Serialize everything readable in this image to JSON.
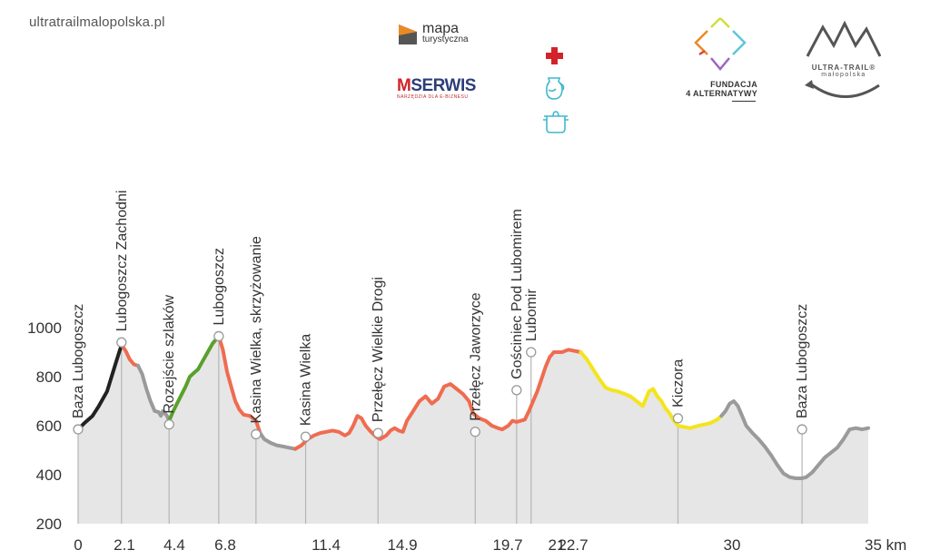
{
  "site": {
    "url": "ultratrailmalopolska.pl"
  },
  "logos": {
    "mapa": {
      "line1": "mapa",
      "line2": "turystyczna",
      "colors": {
        "orange": "#e98a24",
        "dark": "#555555"
      }
    },
    "mserwis": {
      "m": "M",
      "rest": "SERWIS",
      "tagline": "NARZĘDZIA DLA E-BIZNESU"
    },
    "fundacja": {
      "line1": "FUNDACJA",
      "line2": "4 ALTERNATYWY"
    },
    "ultratrail": {
      "line1": "ULTRA-TRAIL®",
      "line2": "małopolska"
    }
  },
  "service_icons": [
    "first-aid-cross-icon",
    "water-jug-icon",
    "cooking-pot-icon"
  ],
  "chart_data": {
    "type": "area",
    "title": "",
    "xlabel": "",
    "ylabel": "",
    "x_unit": "km",
    "xlim": [
      0,
      35
    ],
    "ylim": [
      200,
      1000
    ],
    "yticks": [
      200,
      400,
      600,
      800,
      1000
    ],
    "x_ticks": [
      0,
      2.1,
      4.4,
      6.8,
      11.4,
      14.9,
      19.7,
      21,
      22.7,
      30,
      35
    ],
    "x_tick_labels": [
      "0",
      "2.1",
      "4.4",
      "6.8",
      "11.4",
      "14.9",
      "19.7",
      "21",
      "22.7",
      "30",
      "35 km"
    ],
    "grid": false,
    "fill_color": "#e6e6e6",
    "waypoints": [
      {
        "km": 0,
        "elev": 585,
        "name": "Baza Lubogoszcz"
      },
      {
        "km": 2.1,
        "elev": 940,
        "name": "Lubogoszcz Zachodni"
      },
      {
        "km": 4.4,
        "elev": 605,
        "name": "Rozejście szlaków"
      },
      {
        "km": 6.8,
        "elev": 965,
        "name": "Lubogoszcz"
      },
      {
        "km": 8.6,
        "elev": 565,
        "name": "Kasina Wielka, skrzyżowanie"
      },
      {
        "km": 11.0,
        "elev": 555,
        "name": "Kasina Wielka"
      },
      {
        "km": 14.5,
        "elev": 570,
        "name": "Przełęcz Wielkie Drogi"
      },
      {
        "km": 19.2,
        "elev": 575,
        "name": "Przełęcz Jaworzyce"
      },
      {
        "km": 21.2,
        "elev": 745,
        "name": "Gościniec Pod Lubomirem"
      },
      {
        "km": 21.9,
        "elev": 900,
        "name": "Lubomir"
      },
      {
        "km": 29.0,
        "elev": 630,
        "name": "Kiczora"
      },
      {
        "km": 35,
        "elev": 585,
        "name": "Baza Lubogoszcz"
      }
    ],
    "segments": [
      {
        "color": "#222222",
        "points": [
          [
            0,
            585
          ],
          [
            0.3,
            610
          ],
          [
            0.7,
            640
          ],
          [
            1.0,
            680
          ],
          [
            1.4,
            740
          ],
          [
            1.8,
            850
          ],
          [
            2.1,
            930
          ]
        ]
      },
      {
        "color": "#ef6c50",
        "points": [
          [
            2.1,
            930
          ],
          [
            2.3,
            905
          ],
          [
            2.5,
            870
          ],
          [
            2.7,
            850
          ],
          [
            2.9,
            845
          ]
        ]
      },
      {
        "color": "#9a9a9a",
        "points": [
          [
            2.9,
            845
          ],
          [
            3.1,
            810
          ],
          [
            3.3,
            750
          ],
          [
            3.5,
            700
          ],
          [
            3.7,
            660
          ],
          [
            3.9,
            655
          ],
          [
            4.0,
            640
          ],
          [
            4.1,
            660
          ],
          [
            4.3,
            640
          ],
          [
            4.4,
            620
          ]
        ]
      },
      {
        "color": "#5aa02c",
        "points": [
          [
            4.4,
            620
          ],
          [
            4.6,
            660
          ],
          [
            4.9,
            710
          ],
          [
            5.2,
            760
          ],
          [
            5.4,
            800
          ],
          [
            5.6,
            815
          ],
          [
            5.8,
            830
          ],
          [
            6.0,
            860
          ],
          [
            6.3,
            905
          ],
          [
            6.5,
            935
          ],
          [
            6.8,
            965
          ]
        ]
      },
      {
        "color": "#ef6c50",
        "points": [
          [
            6.8,
            965
          ],
          [
            7.0,
            910
          ],
          [
            7.2,
            820
          ],
          [
            7.4,
            760
          ],
          [
            7.6,
            700
          ],
          [
            7.8,
            665
          ],
          [
            8.0,
            645
          ],
          [
            8.3,
            640
          ],
          [
            8.6,
            620
          ],
          [
            8.8,
            570
          ]
        ]
      },
      {
        "color": "#9a9a9a",
        "points": [
          [
            8.8,
            570
          ],
          [
            9.0,
            545
          ],
          [
            9.3,
            530
          ],
          [
            9.6,
            520
          ],
          [
            9.9,
            515
          ],
          [
            10.2,
            510
          ],
          [
            10.5,
            505
          ]
        ]
      },
      {
        "color": "#ef6c50",
        "points": [
          [
            10.5,
            505
          ],
          [
            10.8,
            520
          ],
          [
            11.1,
            545
          ],
          [
            11.4,
            560
          ],
          [
            11.7,
            570
          ],
          [
            12.0,
            575
          ],
          [
            12.3,
            580
          ],
          [
            12.6,
            575
          ],
          [
            12.9,
            560
          ],
          [
            13.1,
            570
          ],
          [
            13.3,
            600
          ],
          [
            13.5,
            640
          ],
          [
            13.7,
            630
          ],
          [
            13.9,
            600
          ],
          [
            14.1,
            580
          ],
          [
            14.4,
            555
          ],
          [
            14.6,
            545
          ],
          [
            14.9,
            560
          ],
          [
            15.1,
            580
          ],
          [
            15.3,
            590
          ],
          [
            15.5,
            580
          ],
          [
            15.7,
            575
          ],
          [
            15.9,
            620
          ],
          [
            16.2,
            660
          ],
          [
            16.5,
            700
          ],
          [
            16.8,
            720
          ],
          [
            17.1,
            690
          ],
          [
            17.4,
            710
          ],
          [
            17.7,
            760
          ],
          [
            18.0,
            770
          ],
          [
            18.3,
            750
          ],
          [
            18.6,
            730
          ],
          [
            18.9,
            700
          ],
          [
            19.1,
            650
          ],
          [
            19.4,
            630
          ],
          [
            19.7,
            620
          ],
          [
            20.0,
            600
          ],
          [
            20.3,
            590
          ],
          [
            20.5,
            585
          ],
          [
            20.8,
            600
          ],
          [
            21.0,
            620
          ],
          [
            21.2,
            615
          ],
          [
            21.4,
            620
          ],
          [
            21.6,
            625
          ],
          [
            21.8,
            660
          ],
          [
            22.0,
            700
          ],
          [
            22.2,
            740
          ],
          [
            22.4,
            790
          ],
          [
            22.6,
            840
          ],
          [
            22.8,
            880
          ],
          [
            23.0,
            900
          ],
          [
            23.4,
            900
          ],
          [
            23.7,
            910
          ],
          [
            24.0,
            905
          ],
          [
            24.3,
            900
          ]
        ]
      },
      {
        "color": "#f4e41e",
        "points": [
          [
            24.3,
            900
          ],
          [
            24.6,
            870
          ],
          [
            24.9,
            830
          ],
          [
            25.2,
            790
          ],
          [
            25.5,
            755
          ],
          [
            25.8,
            745
          ],
          [
            26.1,
            740
          ],
          [
            26.4,
            730
          ],
          [
            26.7,
            720
          ],
          [
            27.0,
            700
          ],
          [
            27.3,
            680
          ],
          [
            27.6,
            740
          ],
          [
            27.8,
            750
          ],
          [
            28.0,
            720
          ],
          [
            28.2,
            700
          ],
          [
            28.4,
            670
          ],
          [
            28.6,
            650
          ],
          [
            28.8,
            620
          ],
          [
            29.0,
            600
          ],
          [
            29.3,
            595
          ],
          [
            29.6,
            590
          ],
          [
            30.0,
            600
          ],
          [
            30.3,
            605
          ],
          [
            30.6,
            612
          ],
          [
            30.9,
            625
          ],
          [
            31.1,
            640
          ]
        ]
      },
      {
        "color": "#9a9a9a",
        "points": [
          [
            31.1,
            640
          ],
          [
            31.3,
            660
          ],
          [
            31.5,
            690
          ],
          [
            31.7,
            700
          ],
          [
            31.9,
            680
          ],
          [
            32.1,
            640
          ],
          [
            32.3,
            600
          ],
          [
            32.6,
            570
          ],
          [
            32.9,
            545
          ],
          [
            33.2,
            515
          ],
          [
            33.5,
            480
          ],
          [
            33.8,
            440
          ],
          [
            34.1,
            405
          ],
          [
            34.4,
            390
          ],
          [
            34.7,
            385
          ],
          [
            35.0,
            385
          ],
          [
            35.2,
            390
          ],
          [
            35.5,
            410
          ],
          [
            35.8,
            440
          ],
          [
            36.1,
            470
          ],
          [
            36.4,
            490
          ],
          [
            36.7,
            510
          ],
          [
            37.0,
            545
          ],
          [
            37.3,
            585
          ],
          [
            37.6,
            590
          ],
          [
            37.9,
            585
          ],
          [
            38.2,
            590
          ]
        ]
      }
    ],
    "colors": {
      "axis_text": "#333333",
      "marker_line": "#b5b5b5"
    }
  }
}
